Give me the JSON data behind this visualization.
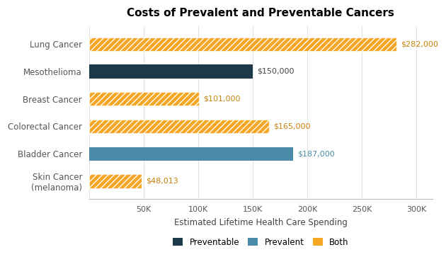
{
  "title": "Costs of Prevalent and Preventable Cancers",
  "xlabel": "Estimated Lifetime Health Care Spending",
  "categories": [
    "Lung Cancer",
    "Mesothelioma",
    "Breast Cancer",
    "Colorectal Cancer",
    "Bladder Cancer",
    "Skin Cancer\n(melanoma)"
  ],
  "values": [
    282000,
    150000,
    101000,
    165000,
    187000,
    48013
  ],
  "types": [
    "both",
    "preventable",
    "both",
    "both",
    "prevalent",
    "both"
  ],
  "labels": [
    "$282,000",
    "$150,000",
    "$101,000",
    "$165,000",
    "$187,000",
    "$48,013"
  ],
  "colors": {
    "both": "#F5A623",
    "preventable": "#1C3A4A",
    "prevalent": "#4A8BA8"
  },
  "label_colors": {
    "both": "#C8820A",
    "preventable": "#444444",
    "prevalent": "#4A8BA8"
  },
  "xlim": [
    0,
    315000
  ],
  "xticks": [
    0,
    50000,
    100000,
    150000,
    200000,
    250000,
    300000
  ],
  "xtick_labels": [
    "",
    "50K",
    "100K",
    "150K",
    "200K",
    "250K",
    "300K"
  ],
  "background_color": "#FFFFFF",
  "hatch_pattern": "////",
  "bar_height": 0.5,
  "legend": {
    "entries": [
      "Preventable",
      "Prevalent",
      "Both"
    ],
    "colors": [
      "#1C3A4A",
      "#4A8BA8",
      "#F5A623"
    ],
    "hatch": [
      null,
      null,
      null
    ]
  }
}
